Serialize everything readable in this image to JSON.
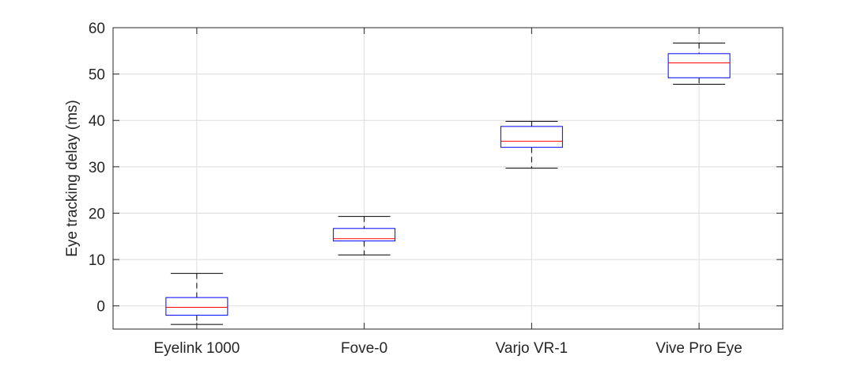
{
  "chart_data": {
    "type": "box",
    "title": "",
    "xlabel": "",
    "ylabel": "Eye tracking delay (ms)",
    "ylim": [
      -5,
      60
    ],
    "yticks": [
      0,
      10,
      20,
      30,
      40,
      50,
      60
    ],
    "grid": true,
    "categories": [
      "Eyelink 1000",
      "Fove-0",
      "Varjo VR-1",
      "Vive Pro Eye"
    ],
    "boxes": [
      {
        "name": "Eyelink 1000",
        "whisker_low": -4,
        "q1": -2,
        "median": -0.3,
        "q3": 1.8,
        "whisker_high": 7
      },
      {
        "name": "Fove-0",
        "whisker_low": 11,
        "q1": 14,
        "median": 14.5,
        "q3": 16.7,
        "whisker_high": 19.3
      },
      {
        "name": "Varjo VR-1",
        "whisker_low": 29.7,
        "q1": 34.2,
        "median": 35.5,
        "q3": 38.7,
        "whisker_high": 39.8
      },
      {
        "name": "Vive Pro Eye",
        "whisker_low": 47.8,
        "q1": 49.2,
        "median": 52.4,
        "q3": 54.4,
        "whisker_high": 56.7
      }
    ],
    "colors": {
      "box": "#0000ff",
      "median": "#ff0000",
      "whisker": "#000000",
      "grid": "#dedede",
      "axis": "#262626"
    }
  }
}
